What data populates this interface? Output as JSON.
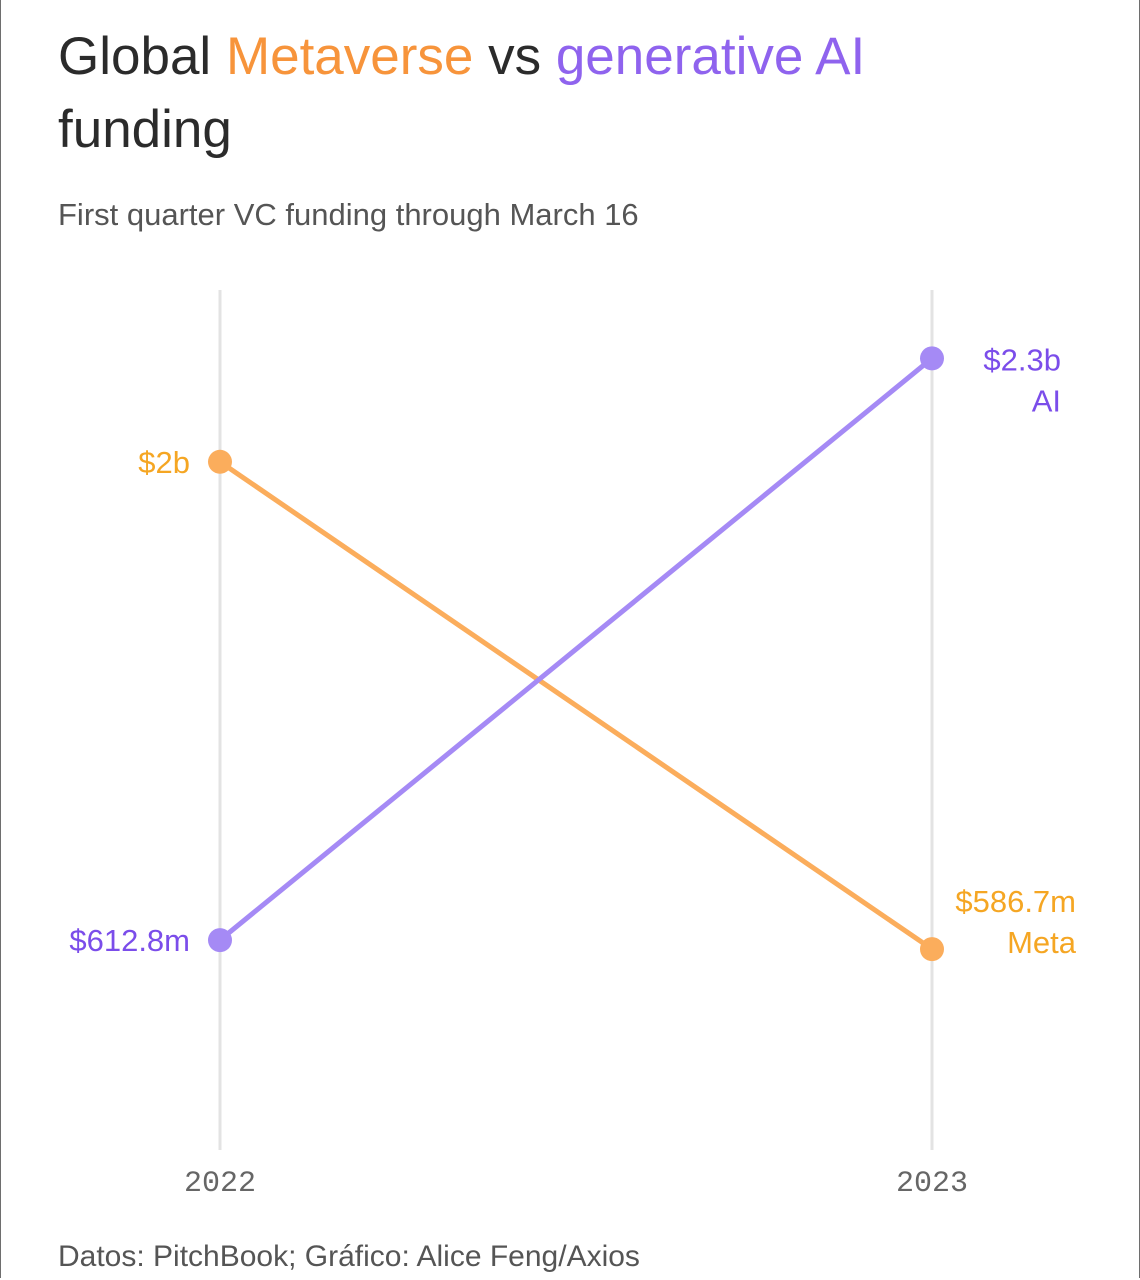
{
  "title": {
    "part1": "Global ",
    "meta": "Metaverse",
    "part2": " vs ",
    "ai": "generative AI",
    "part3": " funding"
  },
  "subtitle": "First quarter VC funding through March 16",
  "source": "Datos: PitchBook; Gráfico: Alice Feng/Axios",
  "chart_data": {
    "type": "line",
    "categories": [
      "2022",
      "2023"
    ],
    "ylim": [
      0,
      2.8
    ],
    "grid": "vertical lines at each year",
    "series": [
      {
        "name": "Meta",
        "color": "#fbad5c",
        "label_color": "#f5a623",
        "values": [
          2.0,
          0.5867
        ],
        "value_labels": [
          "$2b",
          "$586.7m"
        ]
      },
      {
        "name": "AI",
        "color": "#a58af5",
        "label_color": "#7b4dea",
        "values": [
          0.6128,
          2.3
        ],
        "value_labels": [
          "$612.8m",
          "$2.3b"
        ]
      }
    ]
  }
}
